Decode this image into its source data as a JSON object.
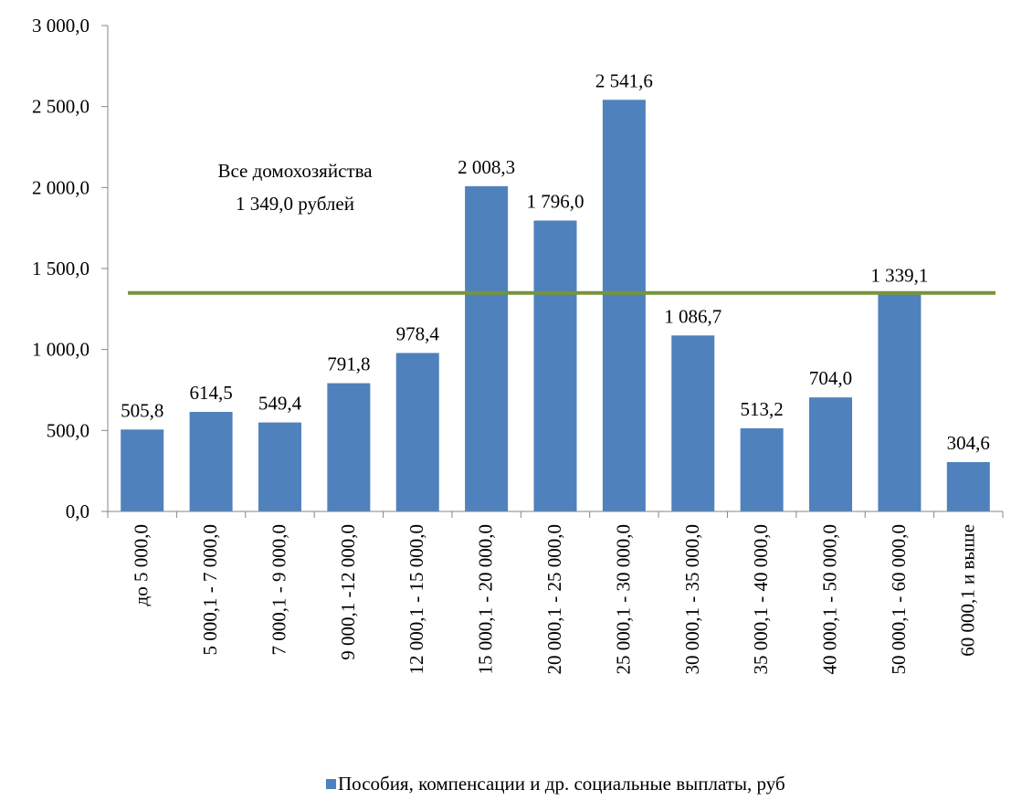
{
  "chart_data": {
    "type": "bar",
    "categories": [
      "до 5 000,0",
      "5 000,1 - 7 000,0",
      "7 000,1 - 9 000,0",
      "9 000,1 -12 000,0",
      "12 000,1 - 15 000,0",
      "15 000,1 - 20 000,0",
      "20 000,1 - 25 000,0",
      "25 000,1 - 30 000,0",
      "30 000,1 - 35 000,0",
      "35 000,1 - 40 000,0",
      "40 000,1 - 50 000,0",
      "50 000,1 - 60 000,0",
      "60 000,1 и выше"
    ],
    "series": [
      {
        "name": "Пособия, компенсации и др. социальные выплаты, руб",
        "values": [
          505.8,
          614.5,
          549.4,
          791.8,
          978.4,
          2008.3,
          1796.0,
          2541.6,
          1086.7,
          513.2,
          704.0,
          1339.1,
          304.6
        ],
        "value_labels": [
          "505,8",
          "614,5",
          "549,4",
          "791,8",
          "978,4",
          "2 008,3",
          "1 796,0",
          "2 541,6",
          "1 086,7",
          "513,2",
          "704,0",
          "1 339,1",
          "304,6"
        ],
        "color": "#4f81bd"
      }
    ],
    "reference_line": {
      "value": 1349.0,
      "label_line1": "Все домохозяйства",
      "label_line2": "1 349,0 рублей",
      "color": "#77933c"
    },
    "yticks": [
      0,
      500,
      1000,
      1500,
      2000,
      2500,
      3000
    ],
    "ytick_labels": [
      "0,0",
      "500,0",
      "1 000,0",
      "1 500,0",
      "2 000,0",
      "2 500,0",
      "3 000,0"
    ],
    "ylim": [
      0,
      3000
    ],
    "grid": false,
    "legend_position": "bottom",
    "xlabel": "",
    "ylabel": ""
  }
}
